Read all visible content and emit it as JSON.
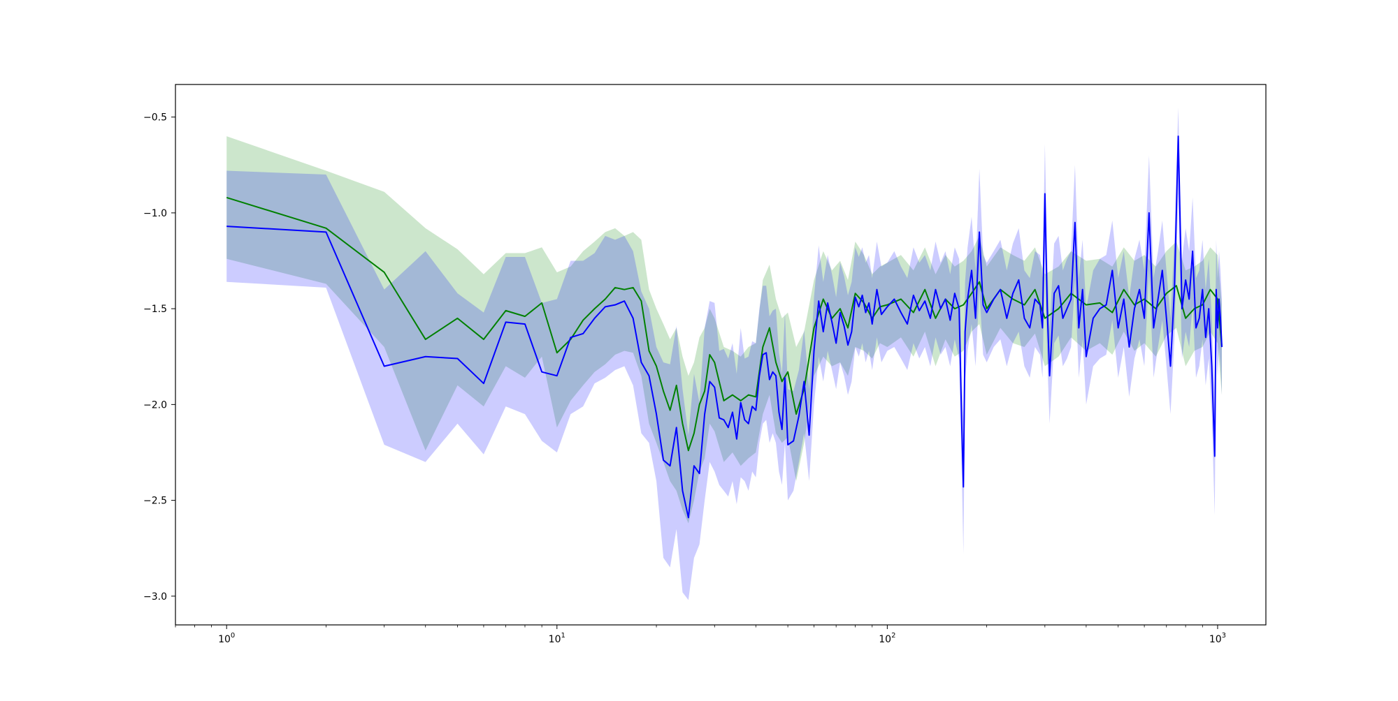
{
  "chart_data": {
    "type": "line",
    "title": "",
    "xlabel": "",
    "ylabel": "",
    "xscale": "log",
    "xlim": [
      0.7,
      1400
    ],
    "ylim": [
      -3.15,
      -0.33
    ],
    "grid": false,
    "legend": "none",
    "x_ticks": [
      {
        "value": 1,
        "base": "10",
        "exp": "0"
      },
      {
        "value": 10,
        "base": "10",
        "exp": "1"
      },
      {
        "value": 100,
        "base": "10",
        "exp": "2"
      },
      {
        "value": 1000,
        "base": "10",
        "exp": "3"
      }
    ],
    "y_ticks": [
      {
        "value": -0.5,
        "label": "−0.5"
      },
      {
        "value": -1.0,
        "label": "−1.0"
      },
      {
        "value": -1.5,
        "label": "−1.5"
      },
      {
        "value": -2.0,
        "label": "−2.0"
      },
      {
        "value": -2.5,
        "label": "−2.5"
      },
      {
        "value": -3.0,
        "label": "−3.0"
      }
    ],
    "series": [
      {
        "color": "#008000",
        "band_color": "#008000",
        "band_opacity": 0.2,
        "x": [
          1,
          2,
          3,
          4,
          5,
          6,
          7,
          8,
          9,
          10,
          11,
          12,
          13,
          14,
          15,
          16,
          17,
          18,
          19,
          20,
          21,
          22,
          23,
          24,
          25,
          26,
          27,
          28,
          29,
          30,
          32,
          34,
          36,
          38,
          40,
          42,
          44,
          46,
          48,
          50,
          53,
          56,
          60,
          64,
          68,
          72,
          76,
          80,
          85,
          90,
          95,
          100,
          110,
          120,
          130,
          140,
          150,
          160,
          170,
          180,
          190,
          200,
          220,
          240,
          260,
          280,
          300,
          330,
          360,
          400,
          440,
          480,
          520,
          560,
          600,
          650,
          700,
          750,
          800,
          850,
          900,
          950,
          1000,
          1030
        ],
        "mean": [
          -0.92,
          -1.08,
          -1.31,
          -1.66,
          -1.55,
          -1.66,
          -1.51,
          -1.54,
          -1.47,
          -1.73,
          -1.66,
          -1.56,
          -1.5,
          -1.45,
          -1.39,
          -1.4,
          -1.39,
          -1.46,
          -1.72,
          -1.8,
          -1.93,
          -2.03,
          -1.9,
          -2.1,
          -2.24,
          -2.15,
          -2.0,
          -1.93,
          -1.74,
          -1.78,
          -1.98,
          -1.95,
          -1.98,
          -1.95,
          -1.96,
          -1.7,
          -1.6,
          -1.78,
          -1.88,
          -1.83,
          -2.05,
          -1.92,
          -1.6,
          -1.45,
          -1.55,
          -1.5,
          -1.6,
          -1.42,
          -1.47,
          -1.55,
          -1.49,
          -1.48,
          -1.45,
          -1.52,
          -1.4,
          -1.55,
          -1.45,
          -1.5,
          -1.48,
          -1.42,
          -1.36,
          -1.5,
          -1.4,
          -1.45,
          -1.48,
          -1.4,
          -1.55,
          -1.5,
          -1.42,
          -1.48,
          -1.47,
          -1.52,
          -1.4,
          -1.48,
          -1.45,
          -1.5,
          -1.42,
          -1.38,
          -1.55,
          -1.5,
          -1.48,
          -1.4,
          -1.45,
          -1.7
        ],
        "lower": [
          -1.24,
          -1.37,
          -1.7,
          -2.24,
          -1.9,
          -2.01,
          -1.8,
          -1.86,
          -1.75,
          -2.12,
          -1.98,
          -1.9,
          -1.83,
          -1.79,
          -1.74,
          -1.72,
          -1.73,
          -1.85,
          -2.1,
          -2.2,
          -2.3,
          -2.4,
          -2.45,
          -2.55,
          -2.62,
          -2.5,
          -2.35,
          -2.28,
          -2.1,
          -2.14,
          -2.3,
          -2.25,
          -2.32,
          -2.28,
          -2.25,
          -2.05,
          -1.95,
          -2.15,
          -2.2,
          -2.17,
          -2.4,
          -2.2,
          -1.85,
          -1.75,
          -1.8,
          -1.78,
          -1.85,
          -1.7,
          -1.72,
          -1.76,
          -1.68,
          -1.7,
          -1.65,
          -1.75,
          -1.62,
          -1.8,
          -1.66,
          -1.75,
          -1.72,
          -1.62,
          -1.58,
          -1.74,
          -1.6,
          -1.68,
          -1.7,
          -1.63,
          -1.8,
          -1.75,
          -1.65,
          -1.72,
          -1.68,
          -1.74,
          -1.62,
          -1.72,
          -1.68,
          -1.75,
          -1.64,
          -1.6,
          -1.8,
          -1.72,
          -1.7,
          -1.62,
          -1.68,
          -1.95
        ],
        "upper": [
          -0.6,
          -0.78,
          -0.89,
          -1.08,
          -1.19,
          -1.32,
          -1.21,
          -1.21,
          -1.18,
          -1.31,
          -1.28,
          -1.2,
          -1.15,
          -1.1,
          -1.08,
          -1.12,
          -1.1,
          -1.14,
          -1.4,
          -1.5,
          -1.58,
          -1.66,
          -1.6,
          -1.75,
          -1.85,
          -1.78,
          -1.65,
          -1.6,
          -1.5,
          -1.55,
          -1.7,
          -1.72,
          -1.75,
          -1.7,
          -1.68,
          -1.35,
          -1.27,
          -1.45,
          -1.55,
          -1.52,
          -1.7,
          -1.62,
          -1.35,
          -1.2,
          -1.3,
          -1.25,
          -1.35,
          -1.15,
          -1.22,
          -1.32,
          -1.28,
          -1.26,
          -1.22,
          -1.3,
          -1.18,
          -1.32,
          -1.22,
          -1.28,
          -1.25,
          -1.2,
          -1.12,
          -1.28,
          -1.18,
          -1.22,
          -1.25,
          -1.18,
          -1.32,
          -1.28,
          -1.2,
          -1.25,
          -1.24,
          -1.28,
          -1.18,
          -1.25,
          -1.22,
          -1.28,
          -1.2,
          -1.15,
          -1.3,
          -1.28,
          -1.25,
          -1.18,
          -1.22,
          -1.48
        ]
      },
      {
        "color": "#0000ff",
        "band_color": "#0000ff",
        "band_opacity": 0.2,
        "x": [
          1,
          2,
          3,
          4,
          5,
          6,
          7,
          8,
          9,
          10,
          11,
          12,
          13,
          14,
          15,
          16,
          17,
          18,
          19,
          20,
          21,
          22,
          23,
          24,
          25,
          26,
          27,
          28,
          29,
          30,
          31,
          32,
          33,
          34,
          35,
          36,
          37,
          38,
          39,
          40,
          41,
          42,
          43,
          44,
          45,
          46,
          47,
          48,
          49,
          50,
          52,
          54,
          56,
          58,
          60,
          62,
          64,
          66,
          68,
          70,
          72,
          74,
          76,
          78,
          80,
          82,
          84,
          86,
          88,
          90,
          93,
          96,
          100,
          105,
          110,
          115,
          120,
          125,
          130,
          135,
          140,
          145,
          150,
          155,
          160,
          165,
          168,
          170,
          172,
          175,
          180,
          185,
          190,
          195,
          200,
          210,
          220,
          230,
          240,
          250,
          260,
          270,
          280,
          290,
          295,
          300,
          305,
          310,
          320,
          330,
          340,
          350,
          360,
          370,
          380,
          390,
          400,
          420,
          440,
          460,
          480,
          500,
          520,
          540,
          560,
          580,
          600,
          620,
          640,
          660,
          680,
          700,
          720,
          740,
          760,
          780,
          800,
          820,
          840,
          860,
          880,
          900,
          920,
          940,
          960,
          980,
          990,
          1000,
          1010,
          1020,
          1030
        ],
        "mean": [
          -1.07,
          -1.1,
          -1.8,
          -1.75,
          -1.76,
          -1.89,
          -1.57,
          -1.58,
          -1.83,
          -1.85,
          -1.65,
          -1.63,
          -1.55,
          -1.49,
          -1.48,
          -1.46,
          -1.55,
          -1.78,
          -1.85,
          -2.05,
          -2.29,
          -2.32,
          -2.12,
          -2.45,
          -2.59,
          -2.32,
          -2.36,
          -2.05,
          -1.88,
          -1.91,
          -2.07,
          -2.08,
          -2.12,
          -2.04,
          -2.18,
          -1.99,
          -2.08,
          -2.1,
          -2.01,
          -2.03,
          -1.85,
          -1.74,
          -1.73,
          -1.87,
          -1.83,
          -1.85,
          -2.04,
          -2.13,
          -1.86,
          -2.21,
          -2.19,
          -2.06,
          -1.88,
          -2.16,
          -1.72,
          -1.46,
          -1.62,
          -1.47,
          -1.57,
          -1.68,
          -1.52,
          -1.59,
          -1.69,
          -1.62,
          -1.44,
          -1.49,
          -1.43,
          -1.52,
          -1.47,
          -1.58,
          -1.4,
          -1.53,
          -1.49,
          -1.45,
          -1.52,
          -1.58,
          -1.43,
          -1.51,
          -1.46,
          -1.55,
          -1.4,
          -1.5,
          -1.45,
          -1.56,
          -1.42,
          -1.5,
          -2.1,
          -2.43,
          -1.62,
          -1.45,
          -1.3,
          -1.55,
          -1.1,
          -1.48,
          -1.52,
          -1.45,
          -1.4,
          -1.55,
          -1.42,
          -1.35,
          -1.55,
          -1.6,
          -1.45,
          -1.48,
          -1.6,
          -0.9,
          -1.5,
          -1.85,
          -1.42,
          -1.38,
          -1.55,
          -1.5,
          -1.45,
          -1.05,
          -1.6,
          -1.4,
          -1.75,
          -1.55,
          -1.5,
          -1.48,
          -1.3,
          -1.6,
          -1.45,
          -1.7,
          -1.5,
          -1.4,
          -1.55,
          -1.0,
          -1.6,
          -1.45,
          -1.3,
          -1.55,
          -1.8,
          -1.4,
          -0.6,
          -1.5,
          -1.35,
          -1.45,
          -1.2,
          -1.6,
          -1.55,
          -1.4,
          -1.65,
          -1.5,
          -1.8,
          -2.27,
          -1.4,
          -1.6,
          -1.45,
          -1.55,
          -1.7
        ],
        "lower": [
          -1.36,
          -1.39,
          -2.21,
          -2.3,
          -2.1,
          -2.26,
          -2.01,
          -2.05,
          -2.19,
          -2.25,
          -2.05,
          -2.01,
          -1.89,
          -1.86,
          -1.82,
          -1.8,
          -1.9,
          -2.15,
          -2.2,
          -2.4,
          -2.8,
          -2.85,
          -2.65,
          -2.98,
          -3.02,
          -2.8,
          -2.73,
          -2.5,
          -2.3,
          -2.35,
          -2.42,
          -2.45,
          -2.48,
          -2.4,
          -2.52,
          -2.38,
          -2.4,
          -2.45,
          -2.35,
          -2.38,
          -2.2,
          -2.1,
          -2.08,
          -2.2,
          -2.15,
          -2.2,
          -2.35,
          -2.42,
          -2.2,
          -2.5,
          -2.45,
          -2.3,
          -2.15,
          -2.4,
          -2.0,
          -1.75,
          -1.88,
          -1.72,
          -1.82,
          -1.92,
          -1.78,
          -1.85,
          -1.95,
          -1.88,
          -1.7,
          -1.75,
          -1.68,
          -1.78,
          -1.72,
          -1.82,
          -1.65,
          -1.78,
          -1.72,
          -1.7,
          -1.76,
          -1.82,
          -1.68,
          -1.76,
          -1.7,
          -1.8,
          -1.65,
          -1.74,
          -1.7,
          -1.8,
          -1.66,
          -1.76,
          -2.35,
          -2.78,
          -1.88,
          -1.72,
          -1.58,
          -1.8,
          -1.4,
          -1.74,
          -1.78,
          -1.7,
          -1.66,
          -1.8,
          -1.68,
          -1.62,
          -1.8,
          -1.86,
          -1.7,
          -1.74,
          -1.86,
          -1.2,
          -1.76,
          -2.1,
          -1.68,
          -1.64,
          -1.8,
          -1.76,
          -1.7,
          -1.35,
          -1.86,
          -1.66,
          -2.0,
          -1.8,
          -1.76,
          -1.74,
          -1.56,
          -1.86,
          -1.7,
          -1.96,
          -1.76,
          -1.66,
          -1.8,
          -1.3,
          -1.86,
          -1.7,
          -1.56,
          -1.8,
          -2.05,
          -1.66,
          -0.9,
          -1.76,
          -1.62,
          -1.7,
          -1.48,
          -1.86,
          -1.8,
          -1.66,
          -1.9,
          -1.76,
          -2.05,
          -2.58,
          -1.66,
          -1.86,
          -1.7,
          -1.8,
          -1.95
        ],
        "upper": [
          -0.78,
          -0.8,
          -1.4,
          -1.2,
          -1.42,
          -1.52,
          -1.23,
          -1.23,
          -1.47,
          -1.45,
          -1.25,
          -1.25,
          -1.21,
          -1.12,
          -1.14,
          -1.12,
          -1.2,
          -1.41,
          -1.5,
          -1.7,
          -1.78,
          -1.79,
          -1.59,
          -1.92,
          -2.16,
          -1.84,
          -1.99,
          -1.6,
          -1.46,
          -1.47,
          -1.72,
          -1.71,
          -1.76,
          -1.68,
          -1.84,
          -1.6,
          -1.76,
          -1.75,
          -1.67,
          -1.68,
          -1.5,
          -1.38,
          -1.38,
          -1.54,
          -1.51,
          -1.5,
          -1.73,
          -1.84,
          -1.52,
          -1.92,
          -1.93,
          -1.82,
          -1.61,
          -1.92,
          -1.44,
          -1.17,
          -1.36,
          -1.22,
          -1.32,
          -1.44,
          -1.26,
          -1.33,
          -1.43,
          -1.36,
          -1.18,
          -1.23,
          -1.18,
          -1.26,
          -1.22,
          -1.34,
          -1.15,
          -1.28,
          -1.26,
          -1.2,
          -1.28,
          -1.34,
          -1.18,
          -1.26,
          -1.22,
          -1.3,
          -1.15,
          -1.26,
          -1.2,
          -1.32,
          -1.18,
          -1.24,
          -1.85,
          -2.08,
          -1.36,
          -1.18,
          -1.02,
          -1.3,
          -0.77,
          -1.22,
          -1.26,
          -1.2,
          -1.14,
          -1.3,
          -1.16,
          -1.08,
          -1.3,
          -1.34,
          -1.2,
          -1.22,
          -1.34,
          -0.64,
          -1.24,
          -1.6,
          -1.16,
          -1.12,
          -1.3,
          -1.24,
          -1.2,
          -0.75,
          -1.34,
          -1.14,
          -1.5,
          -1.3,
          -1.24,
          -1.22,
          -1.04,
          -1.34,
          -1.2,
          -1.44,
          -1.24,
          -1.14,
          -1.3,
          -0.7,
          -1.34,
          -1.2,
          -1.04,
          -1.3,
          -1.55,
          -1.14,
          -0.45,
          -1.24,
          -1.08,
          -1.2,
          -0.92,
          -1.34,
          -1.3,
          -1.14,
          -1.4,
          -1.24,
          -1.55,
          -1.96,
          -1.14,
          -1.34,
          -1.2,
          -1.3,
          -1.45
        ]
      }
    ]
  }
}
